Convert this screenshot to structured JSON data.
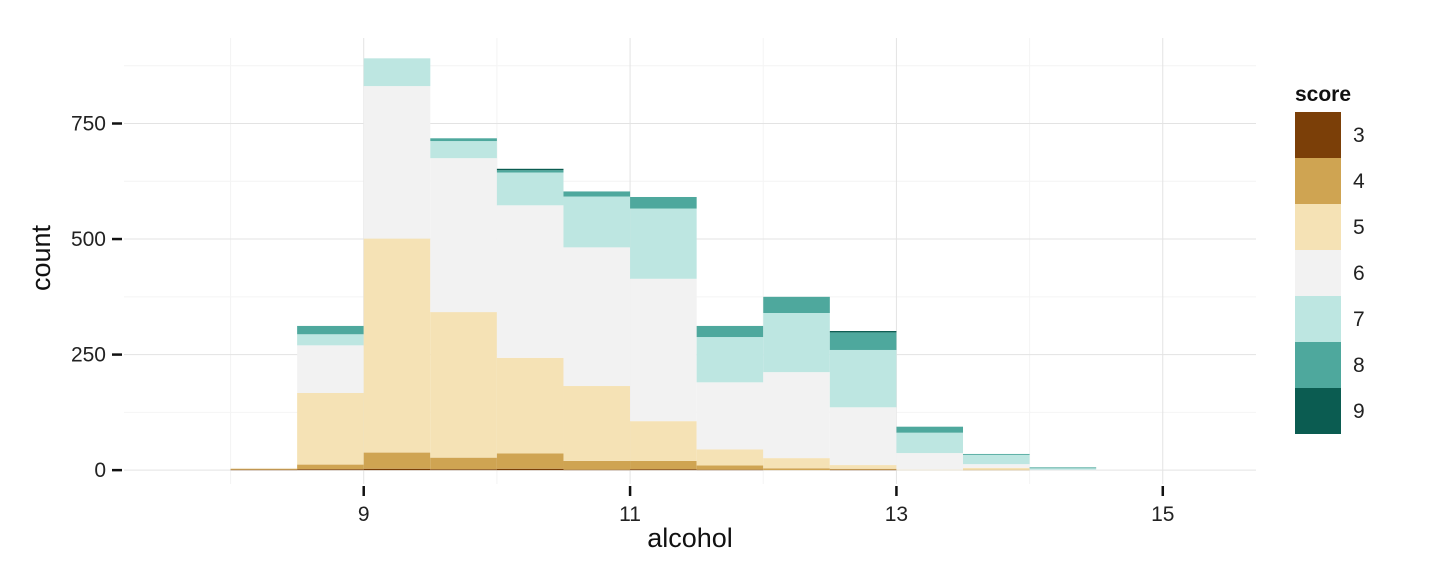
{
  "chart_data": {
    "type": "bar",
    "stacked": true,
    "histogram": true,
    "xlabel": "alcohol",
    "ylabel": "count",
    "xlim": [
      7.2,
      15.7
    ],
    "ylim": [
      -30,
      935
    ],
    "xticks": [
      9,
      11,
      13,
      15
    ],
    "yticks": [
      0,
      250,
      500,
      750
    ],
    "grid": true,
    "legend_title": "score",
    "legend_position": "right",
    "bins": [
      [
        8.0,
        8.5
      ],
      [
        8.5,
        9.0
      ],
      [
        9.0,
        9.5
      ],
      [
        9.5,
        10.0
      ],
      [
        10.0,
        10.5
      ],
      [
        10.5,
        11.0
      ],
      [
        11.0,
        11.5
      ],
      [
        11.5,
        12.0
      ],
      [
        12.0,
        12.5
      ],
      [
        12.5,
        13.0
      ],
      [
        13.0,
        13.5
      ],
      [
        13.5,
        14.0
      ],
      [
        14.0,
        14.5
      ]
    ],
    "series": [
      {
        "name": "3",
        "color": "#7b3f08",
        "values": [
          1,
          2,
          3,
          2,
          3,
          1,
          2,
          1,
          0,
          1,
          0,
          0,
          0
        ]
      },
      {
        "name": "4",
        "color": "#cfa452",
        "values": [
          2,
          10,
          35,
          25,
          33,
          19,
          18,
          9,
          4,
          2,
          0,
          1,
          0
        ]
      },
      {
        "name": "5",
        "color": "#f5e2b5",
        "values": [
          1,
          155,
          463,
          315,
          207,
          162,
          86,
          35,
          22,
          8,
          1,
          4,
          0
        ]
      },
      {
        "name": "6",
        "color": "#f2f2f2",
        "values": [
          1,
          103,
          330,
          333,
          330,
          300,
          308,
          145,
          186,
          125,
          36,
          8,
          1
        ]
      },
      {
        "name": "7",
        "color": "#bde6e1",
        "values": [
          0,
          24,
          60,
          37,
          71,
          110,
          152,
          98,
          128,
          124,
          44,
          20,
          3
        ]
      },
      {
        "name": "8",
        "color": "#4ea89d",
        "values": [
          0,
          18,
          0,
          6,
          5,
          11,
          25,
          24,
          35,
          38,
          13,
          2,
          2
        ]
      },
      {
        "name": "9",
        "color": "#0b5c51",
        "values": [
          0,
          0,
          0,
          0,
          3,
          0,
          0,
          0,
          0,
          3,
          0,
          0,
          0
        ]
      }
    ]
  }
}
